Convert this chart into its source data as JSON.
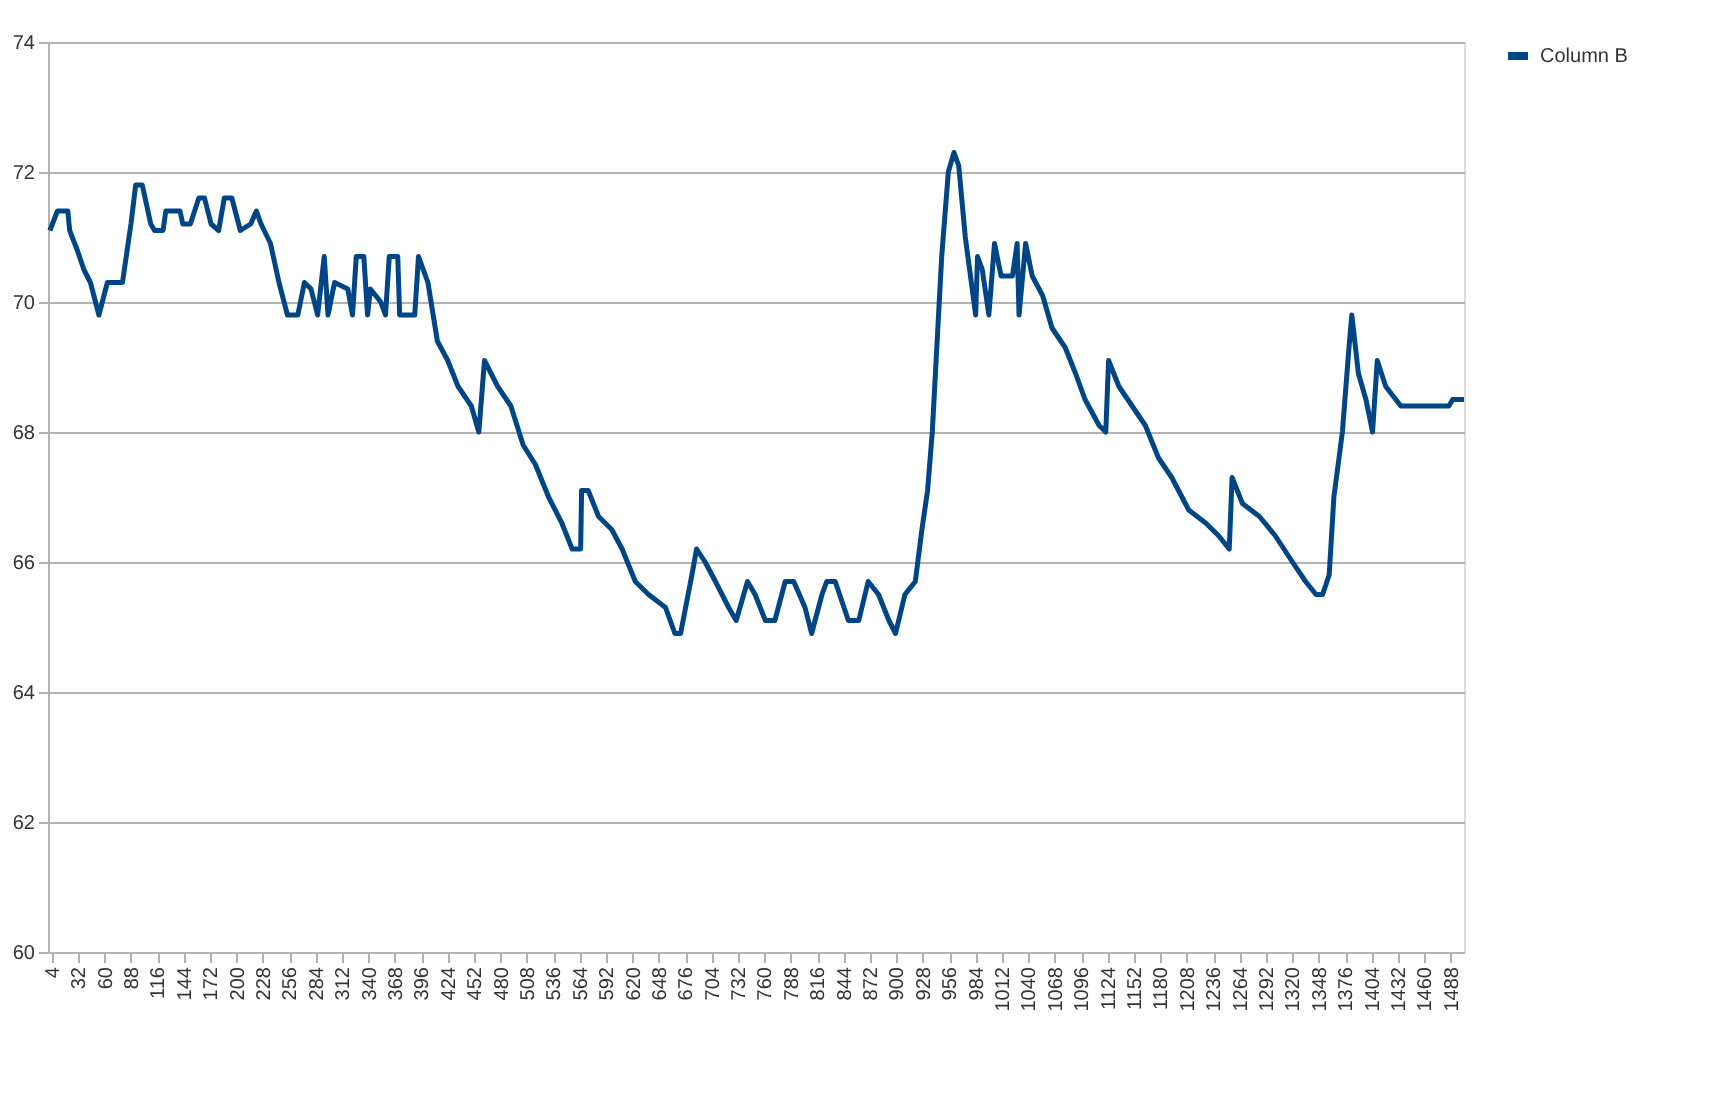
{
  "chart_data": {
    "type": "line",
    "xlim": [
      0,
      1502
    ],
    "ylim": [
      60,
      74
    ],
    "yticks": [
      60,
      62,
      64,
      66,
      68,
      70,
      72,
      74
    ],
    "xticks": [
      4,
      32,
      60,
      88,
      116,
      144,
      172,
      200,
      228,
      256,
      284,
      312,
      340,
      368,
      396,
      424,
      452,
      480,
      508,
      536,
      564,
      592,
      620,
      648,
      676,
      704,
      732,
      760,
      788,
      816,
      844,
      872,
      900,
      928,
      956,
      984,
      1012,
      1040,
      1068,
      1096,
      1124,
      1152,
      1180,
      1208,
      1236,
      1264,
      1292,
      1320,
      1348,
      1376,
      1404,
      1432,
      1460,
      1488
    ],
    "grid": "y",
    "legend": "right",
    "line_style": "solid",
    "marker": "none",
    "series": [
      {
        "name": "Column B",
        "color": "#004586",
        "x": [
          2,
          10,
          21,
          23,
          31,
          38,
          45,
          54,
          63,
          79,
          88,
          93,
          100,
          109,
          113,
          122,
          125,
          140,
          143,
          151,
          160,
          166,
          173,
          181,
          187,
          195,
          204,
          215,
          221,
          226,
          236,
          245,
          254,
          265,
          272,
          279,
          286,
          293,
          297,
          304,
          318,
          323,
          327,
          335,
          339,
          342,
          353,
          358,
          362,
          371,
          373,
          389,
          393,
          403,
          413,
          424,
          435,
          449,
          457,
          463,
          477,
          491,
          504,
          517,
          531,
          545,
          556,
          565,
          566,
          573,
          584,
          598,
          609,
          623,
          637,
          655,
          665,
          671,
          683,
          688,
          697,
          708,
          722,
          730,
          742,
          750,
          761,
          771,
          782,
          791,
          803,
          810,
          821,
          826,
          835,
          849,
          860,
          870,
          881,
          892,
          899,
          909,
          920,
          927,
          933,
          938,
          945,
          948,
          955,
          961,
          966,
          973,
          984,
          986,
          991,
          998,
          1004,
          1011,
          1023,
          1028,
          1030,
          1037,
          1044,
          1055,
          1065,
          1079,
          1090,
          1100,
          1115,
          1122,
          1125,
          1136,
          1150,
          1164,
          1178,
          1192,
          1210,
          1228,
          1242,
          1253,
          1256,
          1267,
          1285,
          1302,
          1320,
          1334,
          1345,
          1352,
          1359,
          1364,
          1373,
          1380,
          1383,
          1390,
          1398,
          1405,
          1410,
          1419,
          1435,
          1486,
          1490,
          1502
        ],
        "values": [
          71.1,
          71.4,
          71.4,
          71.1,
          70.8,
          70.5,
          70.3,
          69.8,
          70.3,
          70.3,
          71.2,
          71.8,
          71.8,
          71.2,
          71.1,
          71.1,
          71.4,
          71.4,
          71.2,
          71.2,
          71.6,
          71.6,
          71.2,
          71.1,
          71.6,
          71.6,
          71.1,
          71.2,
          71.4,
          71.2,
          70.9,
          70.3,
          69.8,
          69.8,
          70.3,
          70.2,
          69.8,
          70.7,
          69.8,
          70.3,
          70.2,
          69.8,
          70.7,
          70.7,
          69.8,
          70.2,
          70.0,
          69.8,
          70.7,
          70.7,
          69.8,
          69.8,
          70.7,
          70.3,
          69.4,
          69.1,
          68.7,
          68.4,
          68.0,
          69.1,
          68.7,
          68.4,
          67.8,
          67.5,
          67.0,
          66.6,
          66.2,
          66.2,
          67.1,
          67.1,
          66.7,
          66.5,
          66.2,
          65.7,
          65.5,
          65.3,
          64.9,
          64.9,
          65.8,
          66.2,
          66.0,
          65.7,
          65.3,
          65.1,
          65.7,
          65.5,
          65.1,
          65.1,
          65.7,
          65.7,
          65.3,
          64.9,
          65.5,
          65.7,
          65.7,
          65.1,
          65.1,
          65.7,
          65.5,
          65.1,
          64.9,
          65.5,
          65.7,
          66.5,
          67.1,
          68.0,
          69.9,
          70.7,
          72.0,
          72.3,
          72.1,
          71.0,
          69.8,
          70.7,
          70.5,
          69.8,
          70.9,
          70.4,
          70.4,
          70.9,
          69.8,
          70.9,
          70.4,
          70.1,
          69.6,
          69.3,
          68.9,
          68.5,
          68.1,
          68.0,
          69.1,
          68.7,
          68.4,
          68.1,
          67.6,
          67.3,
          66.8,
          66.6,
          66.4,
          66.2,
          67.3,
          66.9,
          66.7,
          66.4,
          66.0,
          65.7,
          65.5,
          65.5,
          65.8,
          67.0,
          68.0,
          69.3,
          69.8,
          68.9,
          68.5,
          68.0,
          69.1,
          68.7,
          68.4,
          68.4,
          68.5,
          68.5
        ]
      }
    ]
  }
}
